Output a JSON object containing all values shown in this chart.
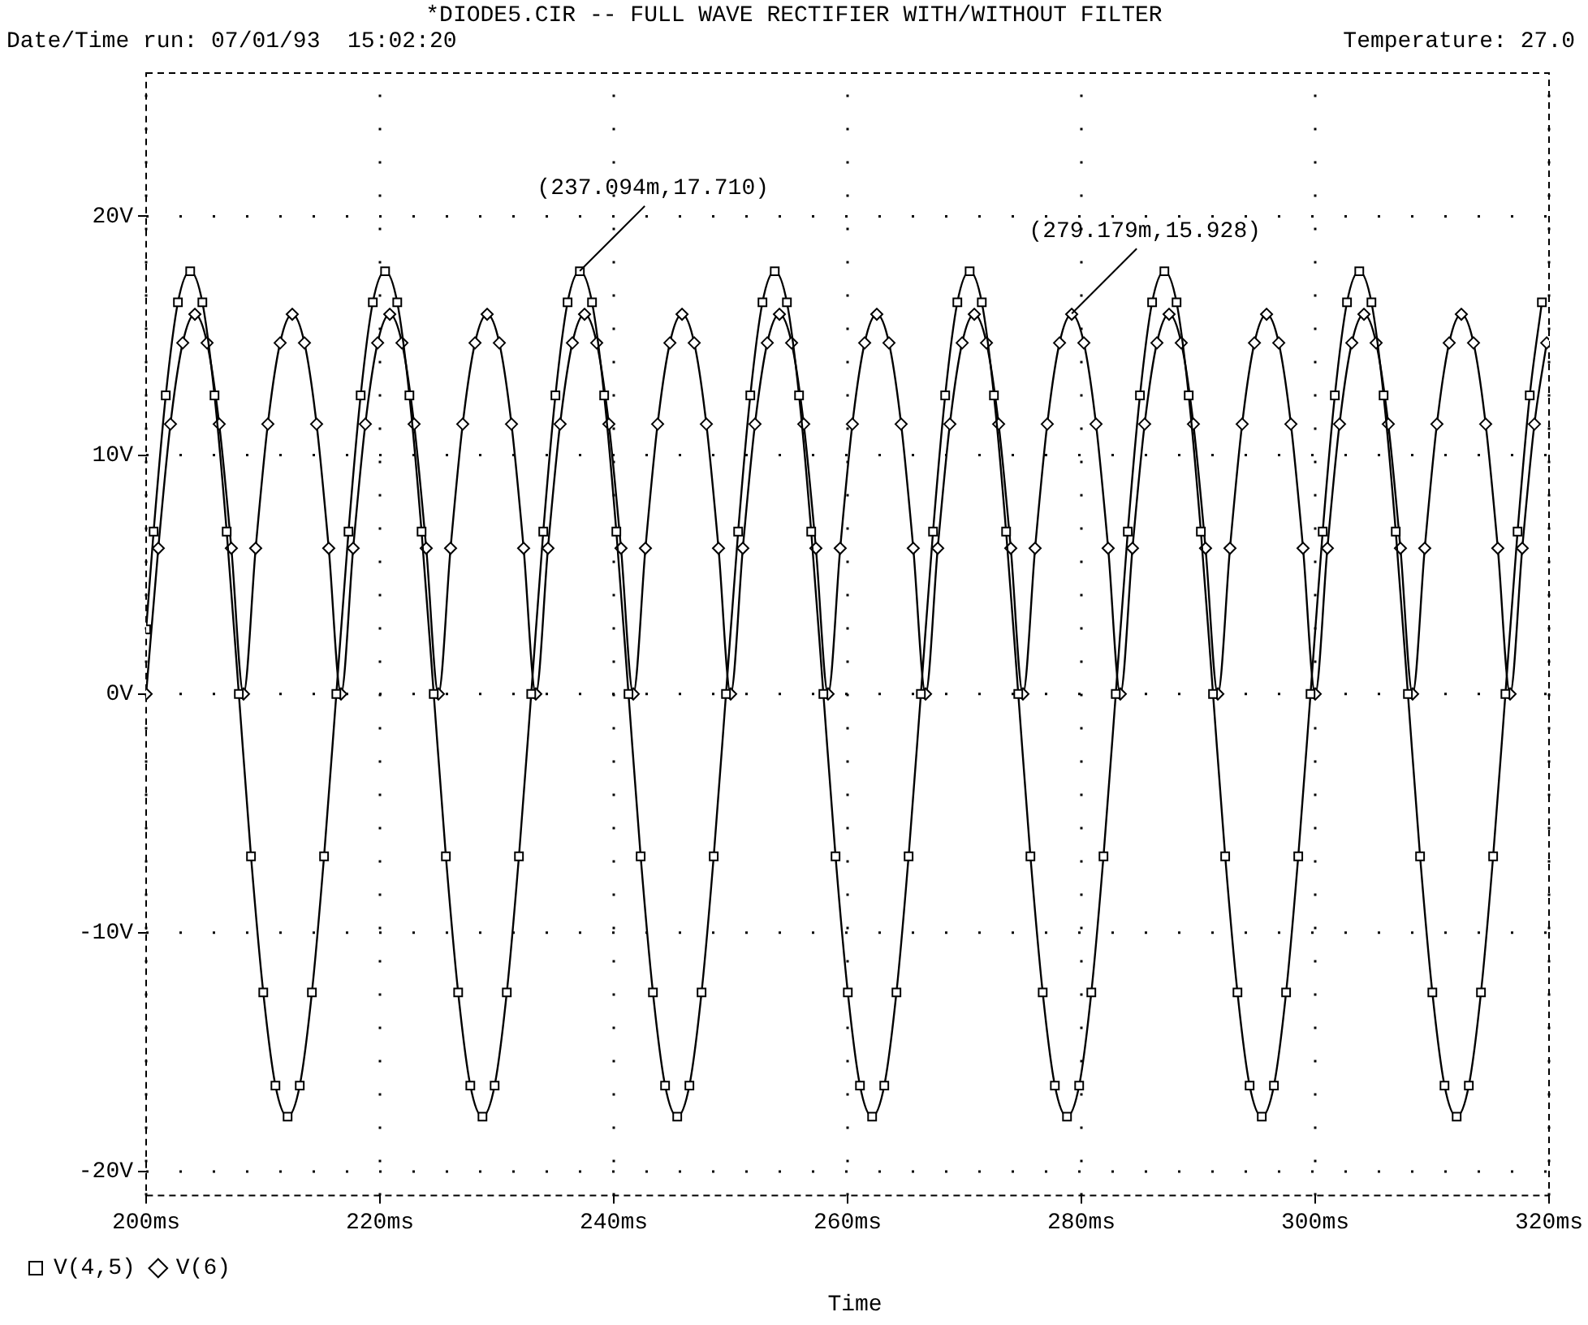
{
  "chart_data": {
    "type": "line",
    "title": "*DIODE5.CIR -- FULL WAVE RECTIFIER WITH/WITHOUT FILTER",
    "subtitle": "Date/Time run: 07/01/93  15:02:20",
    "xlabel": "Time",
    "annotations": [
      "Temperature: 27.0",
      {
        "text": "(237.094m,17.710)",
        "x": 237.094,
        "y": 17.71
      },
      {
        "text": "(279.179m,15.928)",
        "x": 279.179,
        "y": 15.928
      }
    ],
    "xlim": [
      200,
      320
    ],
    "xticks": [
      {
        "value": 200,
        "label": "200ms"
      },
      {
        "value": 220,
        "label": "220ms"
      },
      {
        "value": 240,
        "label": "240ms"
      },
      {
        "value": 260,
        "label": "260ms"
      },
      {
        "value": 280,
        "label": "280ms"
      },
      {
        "value": 300,
        "label": "300ms"
      },
      {
        "value": 320,
        "label": "320ms"
      }
    ],
    "ylim": [
      -21,
      26
    ],
    "yticks": [
      {
        "value": -20,
        "label": "-20V"
      },
      {
        "value": -10,
        "label": "-10V"
      },
      {
        "value": 0,
        "label": "0V"
      },
      {
        "value": 10,
        "label": "10V"
      },
      {
        "value": 20,
        "label": "20V"
      }
    ],
    "grid": true,
    "legend": "bottom left",
    "series": [
      {
        "name": "V(4,5)",
        "color": "#000000",
        "marker": "square",
        "x": [
          200,
          200.64,
          201.68,
          202.72,
          203.77,
          204.81,
          205.85,
          206.89,
          207.93,
          208.97,
          210.02,
          211.06,
          212.1,
          213.14,
          214.18,
          215.22,
          216.27,
          217.31,
          218.35,
          219.39,
          220.44,
          221.48,
          222.52,
          223.56,
          224.6,
          225.64,
          226.69,
          227.73,
          228.77,
          229.81,
          230.85,
          231.89,
          232.94,
          233.97,
          235.01,
          236.05,
          237.1,
          238.14,
          239.18,
          240.22,
          241.26,
          242.3,
          243.35,
          244.39,
          245.43,
          246.47,
          247.51,
          248.55,
          249.6,
          250.64,
          251.68,
          252.72,
          253.77,
          254.81,
          255.85,
          256.89,
          257.93,
          258.97,
          260.02,
          261.06,
          262.1,
          263.14,
          264.18,
          265.22,
          266.27,
          267.31,
          268.35,
          269.39,
          270.44,
          271.48,
          272.52,
          273.56,
          274.6,
          275.64,
          276.69,
          277.73,
          278.77,
          279.81,
          280.85,
          281.89,
          282.94,
          283.97,
          285.01,
          286.05,
          287.1,
          288.14,
          289.18,
          290.22,
          291.26,
          292.3,
          293.35,
          294.39,
          295.43,
          296.47,
          297.51,
          298.55,
          299.6,
          300.64,
          301.68,
          302.72,
          303.77,
          304.81,
          305.85,
          306.89,
          307.93,
          308.97,
          310.02,
          311.06,
          312.1,
          313.14,
          314.18,
          315.22,
          316.27,
          317.31,
          318.35,
          319.39
        ],
        "values": [
          2.7,
          6.8,
          12.5,
          16.4,
          17.7,
          16.4,
          12.5,
          6.8,
          0,
          -6.8,
          -12.5,
          -16.4,
          -17.7,
          -16.4,
          -12.5,
          -6.8,
          0,
          6.8,
          12.5,
          16.4,
          17.7,
          16.4,
          12.5,
          6.8,
          0,
          -6.8,
          -12.5,
          -16.4,
          -17.7,
          -16.4,
          -12.5,
          -6.8,
          0,
          6.8,
          12.5,
          16.4,
          17.7,
          16.4,
          12.5,
          6.8,
          0,
          -6.8,
          -12.5,
          -16.4,
          -17.7,
          -16.4,
          -12.5,
          -6.8,
          0,
          6.8,
          12.5,
          16.4,
          17.7,
          16.4,
          12.5,
          6.8,
          0,
          -6.8,
          -12.5,
          -16.4,
          -17.7,
          -16.4,
          -12.5,
          -6.8,
          0,
          6.8,
          12.5,
          16.4,
          17.7,
          16.4,
          12.5,
          6.8,
          0,
          -6.8,
          -12.5,
          -16.4,
          -17.7,
          -16.4,
          -12.5,
          -6.8,
          0,
          6.8,
          12.5,
          16.4,
          17.7,
          16.4,
          12.5,
          6.8,
          0,
          -6.8,
          -12.5,
          -16.4,
          -17.7,
          -16.4,
          -12.5,
          -6.8,
          0,
          6.8,
          12.5,
          16.4,
          17.7,
          16.4,
          12.5,
          6.8,
          0,
          -6.8,
          -12.5,
          -16.4,
          -17.7,
          -16.4,
          -12.5,
          -6.8,
          0,
          6.8,
          12.5,
          16.4
        ]
      },
      {
        "name": "V(6)",
        "color": "#000000",
        "marker": "diamond",
        "x": [
          200,
          201.04,
          202.08,
          203.13,
          204.17,
          205.21,
          206.25,
          207.29,
          208.33,
          209.37,
          210.41,
          211.46,
          212.5,
          213.54,
          214.58,
          215.62,
          216.67,
          217.71,
          218.75,
          219.8,
          220.84,
          221.88,
          222.92,
          223.96,
          225,
          226.04,
          227.08,
          228.13,
          229.17,
          230.21,
          231.25,
          232.29,
          233.33,
          234.37,
          235.41,
          236.46,
          237.5,
          238.54,
          239.58,
          240.62,
          241.67,
          242.71,
          243.75,
          244.8,
          245.84,
          246.88,
          247.92,
          248.96,
          250,
          251.04,
          252.08,
          253.13,
          254.17,
          255.21,
          256.25,
          257.29,
          258.33,
          259.37,
          260.41,
          261.46,
          262.5,
          263.54,
          264.58,
          265.62,
          266.67,
          267.71,
          268.75,
          269.8,
          270.84,
          271.88,
          272.92,
          273.96,
          275,
          276.04,
          277.08,
          278.13,
          279.17,
          280.21,
          281.25,
          282.29,
          283.33,
          284.37,
          285.41,
          286.46,
          287.5,
          288.54,
          289.58,
          290.62,
          291.67,
          292.71,
          293.75,
          294.8,
          295.84,
          296.88,
          297.92,
          298.96,
          300,
          301.04,
          302.08,
          303.13,
          304.17,
          305.21,
          306.25,
          307.29,
          308.33,
          309.37,
          310.41,
          311.46,
          312.5,
          313.54,
          314.58,
          315.62,
          316.67,
          317.71,
          318.75,
          319.8
        ],
        "values": [
          0,
          6.1,
          11.3,
          14.7,
          15.9,
          14.7,
          11.3,
          6.1,
          0,
          6.1,
          11.3,
          14.7,
          15.9,
          14.7,
          11.3,
          6.1,
          0,
          6.1,
          11.3,
          14.7,
          15.9,
          14.7,
          11.3,
          6.1,
          0,
          6.1,
          11.3,
          14.7,
          15.9,
          14.7,
          11.3,
          6.1,
          0,
          6.1,
          11.3,
          14.7,
          15.9,
          14.7,
          11.3,
          6.1,
          0,
          6.1,
          11.3,
          14.7,
          15.9,
          14.7,
          11.3,
          6.1,
          0,
          6.1,
          11.3,
          14.7,
          15.9,
          14.7,
          11.3,
          6.1,
          0,
          6.1,
          11.3,
          14.7,
          15.9,
          14.7,
          11.3,
          6.1,
          0,
          6.1,
          11.3,
          14.7,
          15.9,
          14.7,
          11.3,
          6.1,
          0,
          6.1,
          11.3,
          14.7,
          15.9,
          14.7,
          11.3,
          6.1,
          0,
          6.1,
          11.3,
          14.7,
          15.9,
          14.7,
          11.3,
          6.1,
          0,
          6.1,
          11.3,
          14.7,
          15.9,
          14.7,
          11.3,
          6.1,
          0,
          6.1,
          11.3,
          14.7,
          15.9,
          14.7,
          11.3,
          6.1,
          0,
          6.1,
          11.3,
          14.7,
          15.9,
          14.7,
          11.3,
          6.1,
          0,
          6.1,
          11.3,
          14.7
        ]
      }
    ]
  }
}
